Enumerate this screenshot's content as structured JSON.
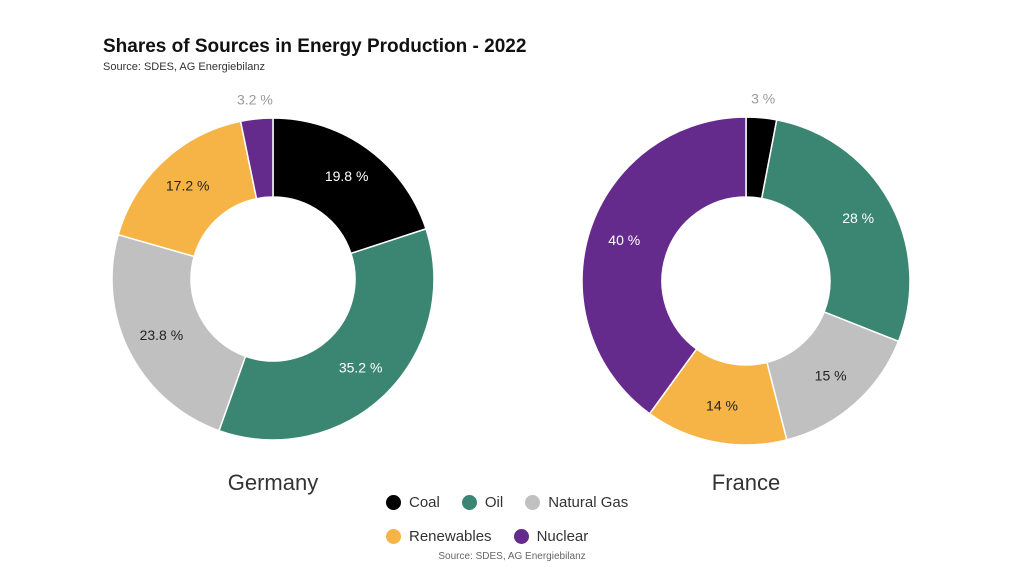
{
  "title": "Shares of Sources in Energy Production - 2022",
  "subtitle": "Source: SDES, AG Energiebilanz",
  "footer_source": "Source: SDES, AG Energiebilanz",
  "colors": {
    "Coal": "#000000",
    "Oil": "#3a8672",
    "Natural Gas": "#c0c0c0",
    "Renewables": "#f7b446",
    "Nuclear": "#652b8c"
  },
  "legend": {
    "rows": [
      [
        {
          "label": "Coal",
          "color": "#000000"
        },
        {
          "label": "Oil",
          "color": "#3a8672"
        },
        {
          "label": "Natural Gas",
          "color": "#c0c0c0"
        }
      ],
      [
        {
          "label": "Renewables",
          "color": "#f7b446"
        },
        {
          "label": "Nuclear",
          "color": "#652b8c"
        }
      ]
    ]
  },
  "chart_data": [
    {
      "type": "pie",
      "title": "Germany",
      "categories": [
        "Coal",
        "Oil",
        "Natural Gas",
        "Renewables",
        "Nuclear"
      ],
      "values": [
        19.8,
        35.2,
        23.8,
        17.2,
        3.2
      ],
      "labels": [
        "19.8 %",
        "35.2 %",
        "23.8 %",
        "17.2 %",
        "3.2 %"
      ]
    },
    {
      "type": "pie",
      "title": "France",
      "categories": [
        "Coal",
        "Oil",
        "Natural Gas",
        "Renewables",
        "Nuclear"
      ],
      "values": [
        3,
        28,
        15,
        14,
        40
      ],
      "labels": [
        "3 %",
        "28 %",
        "15 %",
        "14 %",
        "40 %"
      ]
    }
  ]
}
